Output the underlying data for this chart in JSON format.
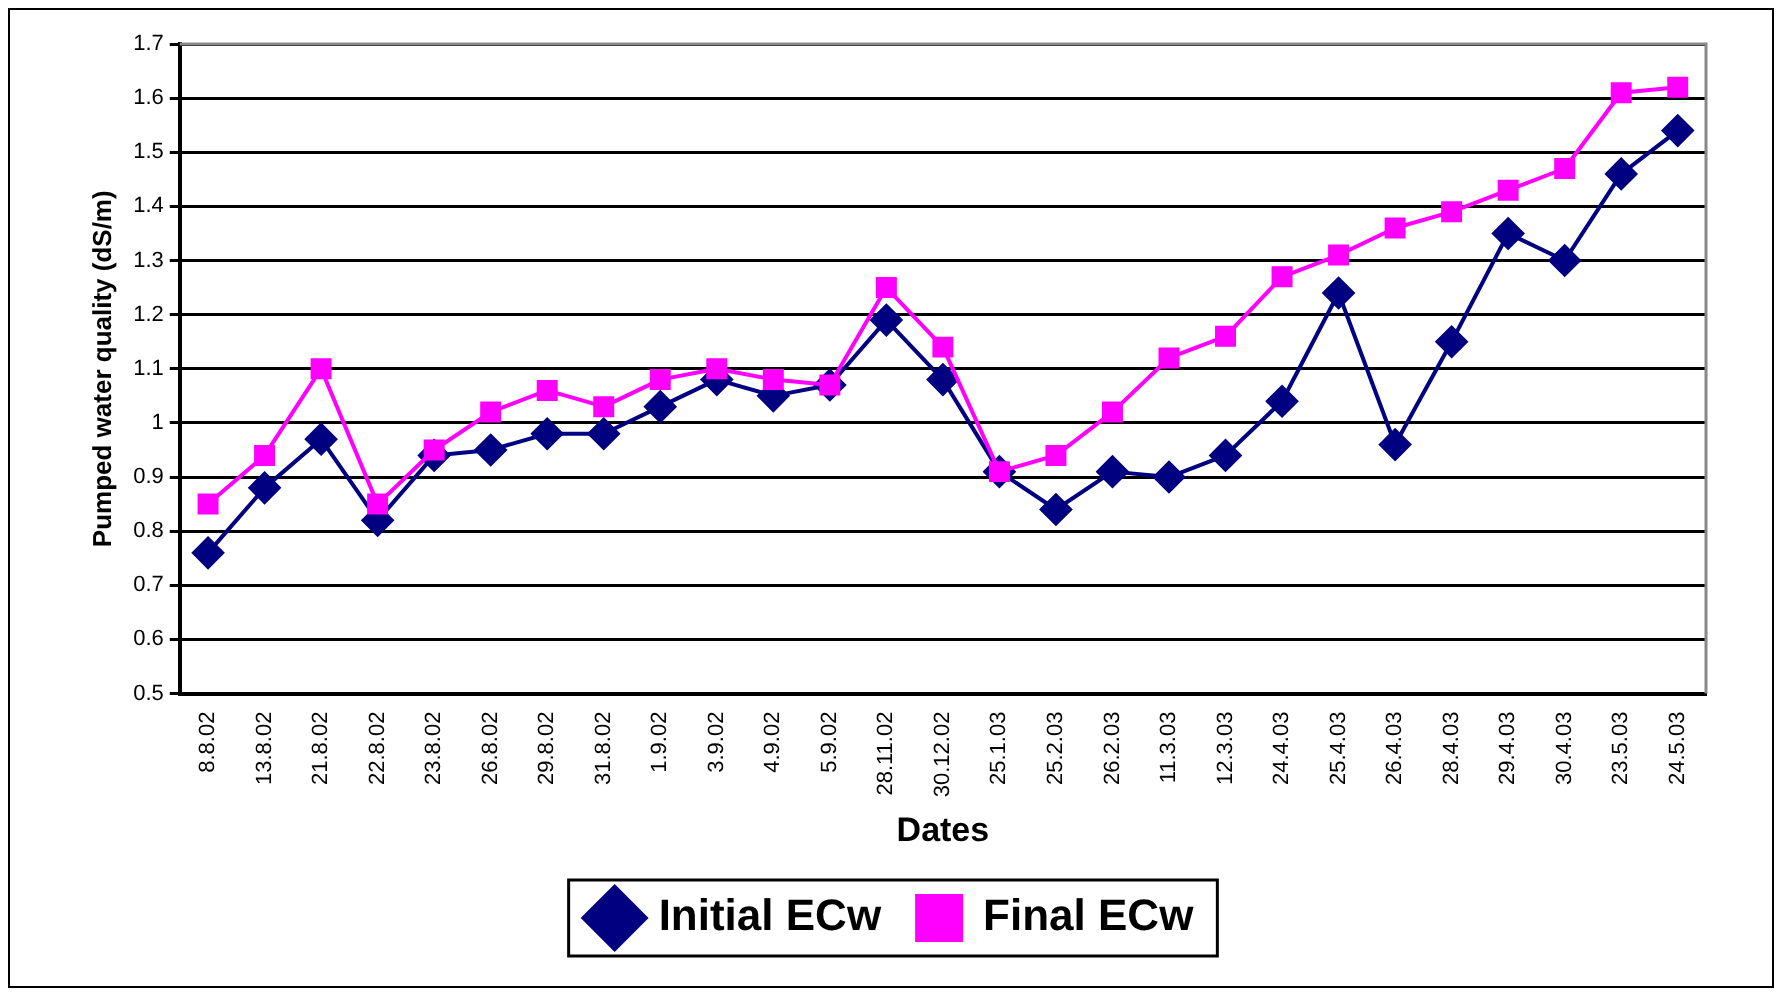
{
  "chart_data": {
    "type": "line",
    "xlabel": "Dates",
    "ylabel": "Pumped water quality (dS/m)",
    "categories": [
      "8.8.02",
      "13.8.02",
      "21.8.02",
      "22.8.02",
      "23.8.02",
      "26.8.02",
      "29.8.02",
      "31.8.02",
      "1.9.02",
      "3.9.02",
      "4.9.02",
      "5.9.02",
      "28.11.02",
      "30.12.02",
      "25.1.03",
      "25.2.03",
      "26.2.03",
      "11.3.03",
      "12.3.03",
      "24.4.03",
      "25.4.03",
      "26.4.03",
      "28.4.03",
      "29.4.03",
      "30.4.03",
      "23.5.03",
      "24.5.03"
    ],
    "series": [
      {
        "name": "Initial ECw",
        "color": "#000080",
        "marker": "diamond",
        "values": [
          0.76,
          0.88,
          0.97,
          0.82,
          0.94,
          0.95,
          0.98,
          0.98,
          1.03,
          1.08,
          1.05,
          1.07,
          1.19,
          1.08,
          0.91,
          0.84,
          0.91,
          0.9,
          0.94,
          1.04,
          1.24,
          0.96,
          1.15,
          1.35,
          1.3,
          1.46,
          1.54
        ]
      },
      {
        "name": "Final ECw",
        "color": "#ff00ff",
        "marker": "square",
        "values": [
          0.85,
          0.94,
          1.1,
          0.85,
          0.95,
          1.02,
          1.06,
          1.03,
          1.08,
          1.1,
          1.08,
          1.07,
          1.25,
          1.14,
          0.91,
          0.94,
          1.02,
          1.12,
          1.16,
          1.27,
          1.31,
          1.36,
          1.39,
          1.43,
          1.47,
          1.61,
          1.62
        ]
      }
    ],
    "ylim": [
      0.5,
      1.7
    ],
    "yticks": [
      0.5,
      0.6,
      0.7,
      0.8,
      0.9,
      1,
      1.1,
      1.2,
      1.3,
      1.4,
      1.5,
      1.6,
      1.7
    ],
    "grid": "y",
    "legend": "bottom",
    "line_style": "solid"
  }
}
